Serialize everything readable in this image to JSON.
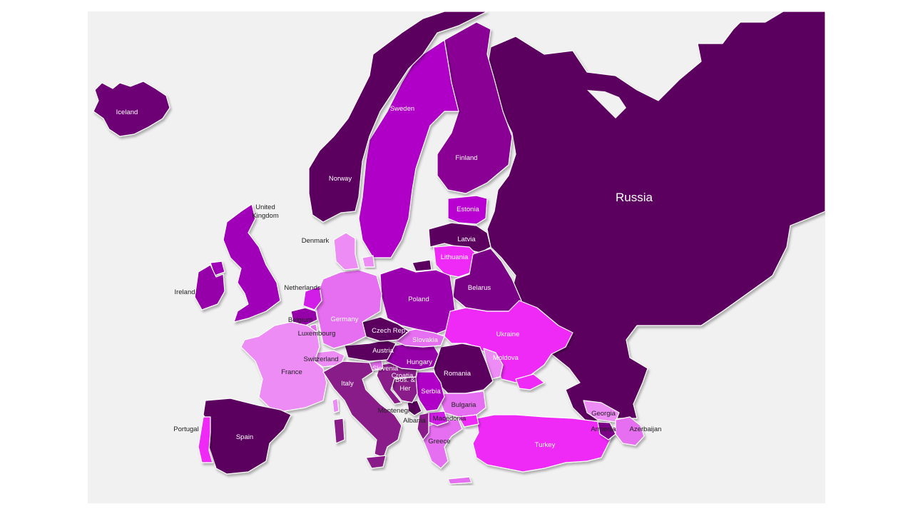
{
  "map": {
    "colors": {
      "darkest": "#5c0060",
      "dark": "#6e0075",
      "medium_dark": "#8a1a8a",
      "purple": "#9500a8",
      "violet": "#b000c8",
      "magenta": "#d21de8",
      "bright_magenta": "#ef2cf7",
      "pink_light": "#e66ef0",
      "pink_lighter": "#ee8cf6",
      "background": "#f1f1f1"
    },
    "countries": {
      "iceland": {
        "label": "Iceland",
        "color": "#6e0075",
        "text": "#ffffff"
      },
      "norway": {
        "label": "Norway",
        "color": "#5c0060",
        "text": "#ffffff"
      },
      "sweden": {
        "label": "Sweden",
        "color": "#b000c8",
        "text": "#ffffff"
      },
      "finland": {
        "label": "Finland",
        "color": "#8a0095",
        "text": "#ffffff"
      },
      "russia": {
        "label": "Russia",
        "color": "#5c0060",
        "text": "#ffffff"
      },
      "estonia": {
        "label": "Estonia",
        "color": "#b800d0",
        "text": "#ffffff"
      },
      "latvia": {
        "label": "Latvia",
        "color": "#5c0060",
        "text": "#ffffff"
      },
      "lithuania": {
        "label": "Lithuania",
        "color": "#ef2cf7",
        "text": "#ffffff"
      },
      "belarus": {
        "label": "Belarus",
        "color": "#7a0085",
        "text": "#ffffff"
      },
      "poland": {
        "label": "Poland",
        "color": "#9b00ae",
        "text": "#ffffff"
      },
      "ukraine": {
        "label": "Ukraine",
        "color": "#ef2cf7",
        "text": "#ffffff"
      },
      "moldova": {
        "label": "Moldova",
        "color": "#ee8cf6",
        "text": "#ffffff"
      },
      "romania": {
        "label": "Romania",
        "color": "#5c0060",
        "text": "#ffffff"
      },
      "bulgaria": {
        "label": "Bulgaria",
        "color": "#e66ef0",
        "text": "#222222"
      },
      "turkey": {
        "label": "Turkey",
        "color": "#ef2cf7",
        "text": "#ffffff"
      },
      "georgia": {
        "label": "Georgia",
        "color": "#ee8cf6",
        "text": "#222222"
      },
      "armenia": {
        "label": "Armenia",
        "color": "#7a0085",
        "text": "#222222"
      },
      "azerbaijan": {
        "label": "Azerbaijan",
        "color": "#e66ef0",
        "text": "#222222"
      },
      "greece": {
        "label": "Greece",
        "color": "#e66ef0",
        "text": "#222222"
      },
      "macedonia": {
        "label": "Macedonia",
        "color": "#d21de8",
        "text": "#222222"
      },
      "albania": {
        "label": "Albania",
        "color": "#8a1a8a",
        "text": "#222222"
      },
      "montenegro": {
        "label": "Montenegro",
        "color": "#5c0060",
        "text": "#222222"
      },
      "serbia": {
        "label": "Serbia",
        "color": "#b000c8",
        "text": "#ffffff"
      },
      "bosnia": {
        "label": "Bos. &\nHer",
        "color": "#8a1a8a",
        "text": "#ffffff"
      },
      "croatia": {
        "label": "Croatia",
        "color": "#8a1a8a",
        "text": "#ffffff"
      },
      "slovenia": {
        "label": "Slovenia",
        "color": "#e66ef0",
        "text": "#ffffff"
      },
      "hungary": {
        "label": "Hungary",
        "color": "#9500a8",
        "text": "#ffffff"
      },
      "slovakia": {
        "label": "Slovakia",
        "color": "#e66ef0",
        "text": "#ffffff"
      },
      "austria": {
        "label": "Austria",
        "color": "#5c0060",
        "text": "#ffffff"
      },
      "czech": {
        "label": "Czech Rep.",
        "color": "#5c0060",
        "text": "#ffffff"
      },
      "germany": {
        "label": "Germany",
        "color": "#e66ef0",
        "text": "#ffffff"
      },
      "denmark": {
        "label": "Denmark",
        "color": "#ee8cf6",
        "text": "#222222"
      },
      "netherlands": {
        "label": "Netherlands",
        "color": "#d21de8",
        "text": "#222222"
      },
      "belgium": {
        "label": "Belgium",
        "color": "#9500a8",
        "text": "#222222"
      },
      "luxembourg": {
        "label": "Luxembourg",
        "color": "#e66ef0",
        "text": "#222222"
      },
      "switzerland": {
        "label": "Switzerland",
        "color": "#ee8cf6",
        "text": "#222222"
      },
      "france": {
        "label": "France",
        "color": "#ee8cf6",
        "text": "#222222"
      },
      "italy": {
        "label": "Italy",
        "color": "#8a1a8a",
        "text": "#ffffff"
      },
      "spain": {
        "label": "Spain",
        "color": "#5c0060",
        "text": "#ffffff"
      },
      "portugal": {
        "label": "Portugal",
        "color": "#ef2cf7",
        "text": "#222222"
      },
      "uk": {
        "label": "United\nKingdom",
        "color": "#a000b8",
        "text": "#222222"
      },
      "ireland": {
        "label": "Ireland",
        "color": "#9500a8",
        "text": "#222222"
      }
    }
  }
}
